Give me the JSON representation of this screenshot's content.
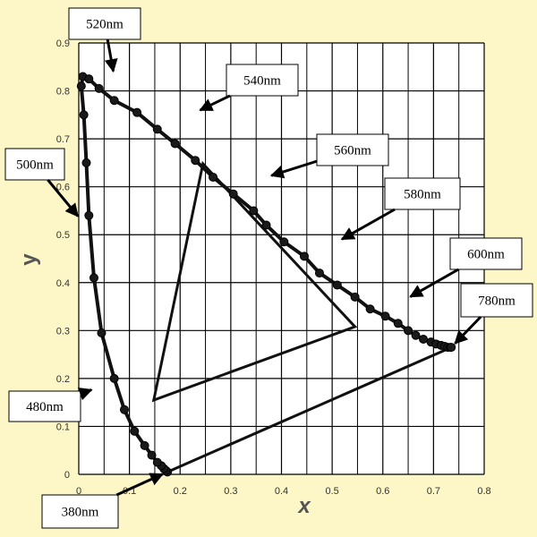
{
  "colors": {
    "background": "#fdf6c6",
    "plot_background": "#ffffff",
    "grid": "#000000",
    "curve": "#111111",
    "marker": "#1a1a1a"
  },
  "chart_data": {
    "type": "scatter",
    "xlabel": "x",
    "ylabel": "y",
    "xlim": [
      0,
      0.8
    ],
    "ylim": [
      0,
      0.9
    ],
    "grid": true,
    "x_ticks": [
      "0",
      "0.1",
      "0.2",
      "0.3",
      "0.4",
      "0.5",
      "0.6",
      "0.7",
      "0.8"
    ],
    "y_ticks": [
      "0",
      "0.1",
      "0.2",
      "0.3",
      "0.4",
      "0.5",
      "0.6",
      "0.7",
      "0.8",
      "0.9"
    ],
    "spectral_locus": {
      "x": [
        0.175,
        0.172,
        0.168,
        0.163,
        0.155,
        0.144,
        0.13,
        0.11,
        0.09,
        0.07,
        0.045,
        0.03,
        0.02,
        0.015,
        0.01,
        0.005,
        0.008,
        0.02,
        0.04,
        0.07,
        0.115,
        0.155,
        0.19,
        0.23,
        0.265,
        0.305,
        0.345,
        0.37,
        0.405,
        0.445,
        0.475,
        0.51,
        0.545,
        0.575,
        0.605,
        0.63,
        0.65,
        0.665,
        0.68,
        0.695,
        0.705,
        0.715,
        0.722,
        0.728,
        0.733,
        0.735
      ],
      "y": [
        0.005,
        0.008,
        0.012,
        0.018,
        0.025,
        0.04,
        0.06,
        0.09,
        0.135,
        0.2,
        0.295,
        0.41,
        0.54,
        0.65,
        0.75,
        0.81,
        0.83,
        0.825,
        0.805,
        0.78,
        0.755,
        0.72,
        0.69,
        0.655,
        0.62,
        0.585,
        0.55,
        0.52,
        0.485,
        0.455,
        0.42,
        0.395,
        0.37,
        0.345,
        0.33,
        0.315,
        0.3,
        0.29,
        0.282,
        0.276,
        0.272,
        0.269,
        0.267,
        0.265,
        0.265,
        0.265
      ]
    },
    "purple_line": {
      "x": [
        0.175,
        0.735
      ],
      "y": [
        0.005,
        0.265
      ]
    },
    "triangle": {
      "x": [
        0.245,
        0.545,
        0.148
      ],
      "y": [
        0.648,
        0.308,
        0.155
      ]
    },
    "annotations": [
      {
        "text": "520nm",
        "point": [
          0.07,
          0.83
        ]
      },
      {
        "text": "540nm",
        "point": [
          0.23,
          0.755
        ]
      },
      {
        "text": "560nm",
        "point": [
          0.37,
          0.62
        ]
      },
      {
        "text": "580nm",
        "point": [
          0.51,
          0.485
        ]
      },
      {
        "text": "600nm",
        "point": [
          0.645,
          0.365
        ]
      },
      {
        "text": "780nm",
        "point": [
          0.735,
          0.265
        ]
      },
      {
        "text": "500nm",
        "point": [
          0.005,
          0.53
        ]
      },
      {
        "text": "480nm",
        "point": [
          0.035,
          0.18
        ]
      },
      {
        "text": "380nm",
        "point": [
          0.175,
          0.005
        ]
      }
    ]
  }
}
